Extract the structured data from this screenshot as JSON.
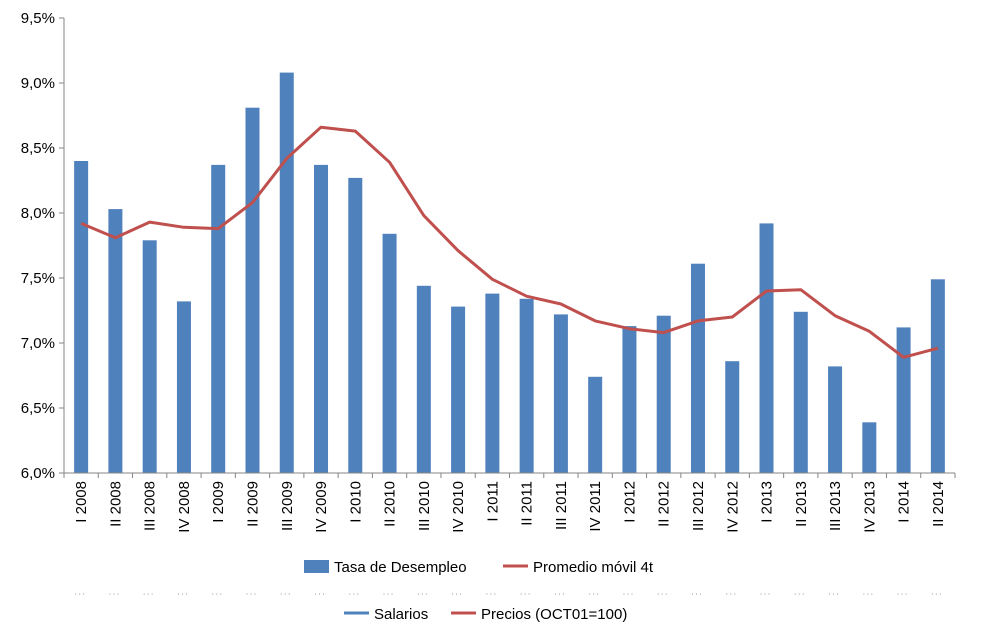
{
  "chart_data": {
    "type": "bar",
    "title": "",
    "xlabel": "",
    "ylabel": "",
    "ylim": [
      6.0,
      9.5
    ],
    "y_ticks": [
      "6,0%",
      "6,5%",
      "7,0%",
      "7,5%",
      "8,0%",
      "8,5%",
      "9,0%",
      "9,5%"
    ],
    "y_tick_values": [
      6.0,
      6.5,
      7.0,
      7.5,
      8.0,
      8.5,
      9.0,
      9.5
    ],
    "grid": false,
    "legend_placement": "bottom",
    "categories": [
      "I 2008",
      "II 2008",
      "III 2008",
      "IV 2008",
      "I 2009",
      "II 2009",
      "III 2009",
      "IV 2009",
      "I 2010",
      "II 2010",
      "III 2010",
      "IV 2010",
      "I 2011",
      "II 2011",
      "III 2011",
      "IV 2011",
      "I 2012",
      "II 2012",
      "III 2012",
      "IV 2012",
      "I 2013",
      "II 2013",
      "III 2013",
      "IV 2013",
      "I 2014",
      "II 2014"
    ],
    "series": [
      {
        "name": "Tasa de Desempleo",
        "type": "bar",
        "color": "#4F81BD",
        "values": [
          8.4,
          8.03,
          7.79,
          7.32,
          8.37,
          8.81,
          9.08,
          8.37,
          8.27,
          7.84,
          7.44,
          7.28,
          7.38,
          7.34,
          7.22,
          6.74,
          7.13,
          7.21,
          7.61,
          6.86,
          7.92,
          7.24,
          6.82,
          6.39,
          7.12,
          7.49
        ]
      },
      {
        "name": "Promedio móvil 4t",
        "type": "line",
        "color": "#C0504D",
        "values": [
          7.92,
          7.81,
          7.93,
          7.89,
          7.88,
          8.08,
          8.42,
          8.66,
          8.63,
          8.39,
          7.98,
          7.71,
          7.49,
          7.36,
          7.3,
          7.17,
          7.11,
          7.08,
          7.17,
          7.2,
          7.4,
          7.41,
          7.21,
          7.09,
          6.89,
          6.96
        ]
      }
    ],
    "legend": [
      {
        "label": "Tasa de Desempleo",
        "type": "bar",
        "color": "#4F81BD"
      },
      {
        "label": "Promedio móvil 4t",
        "type": "line",
        "color": "#C0504D"
      }
    ],
    "secondary_legend": [
      {
        "label": "Salarios",
        "type": "line",
        "color": "#4F81BD"
      },
      {
        "label": "Precios (OCT01=100)",
        "type": "line",
        "color": "#C0504D"
      }
    ]
  }
}
